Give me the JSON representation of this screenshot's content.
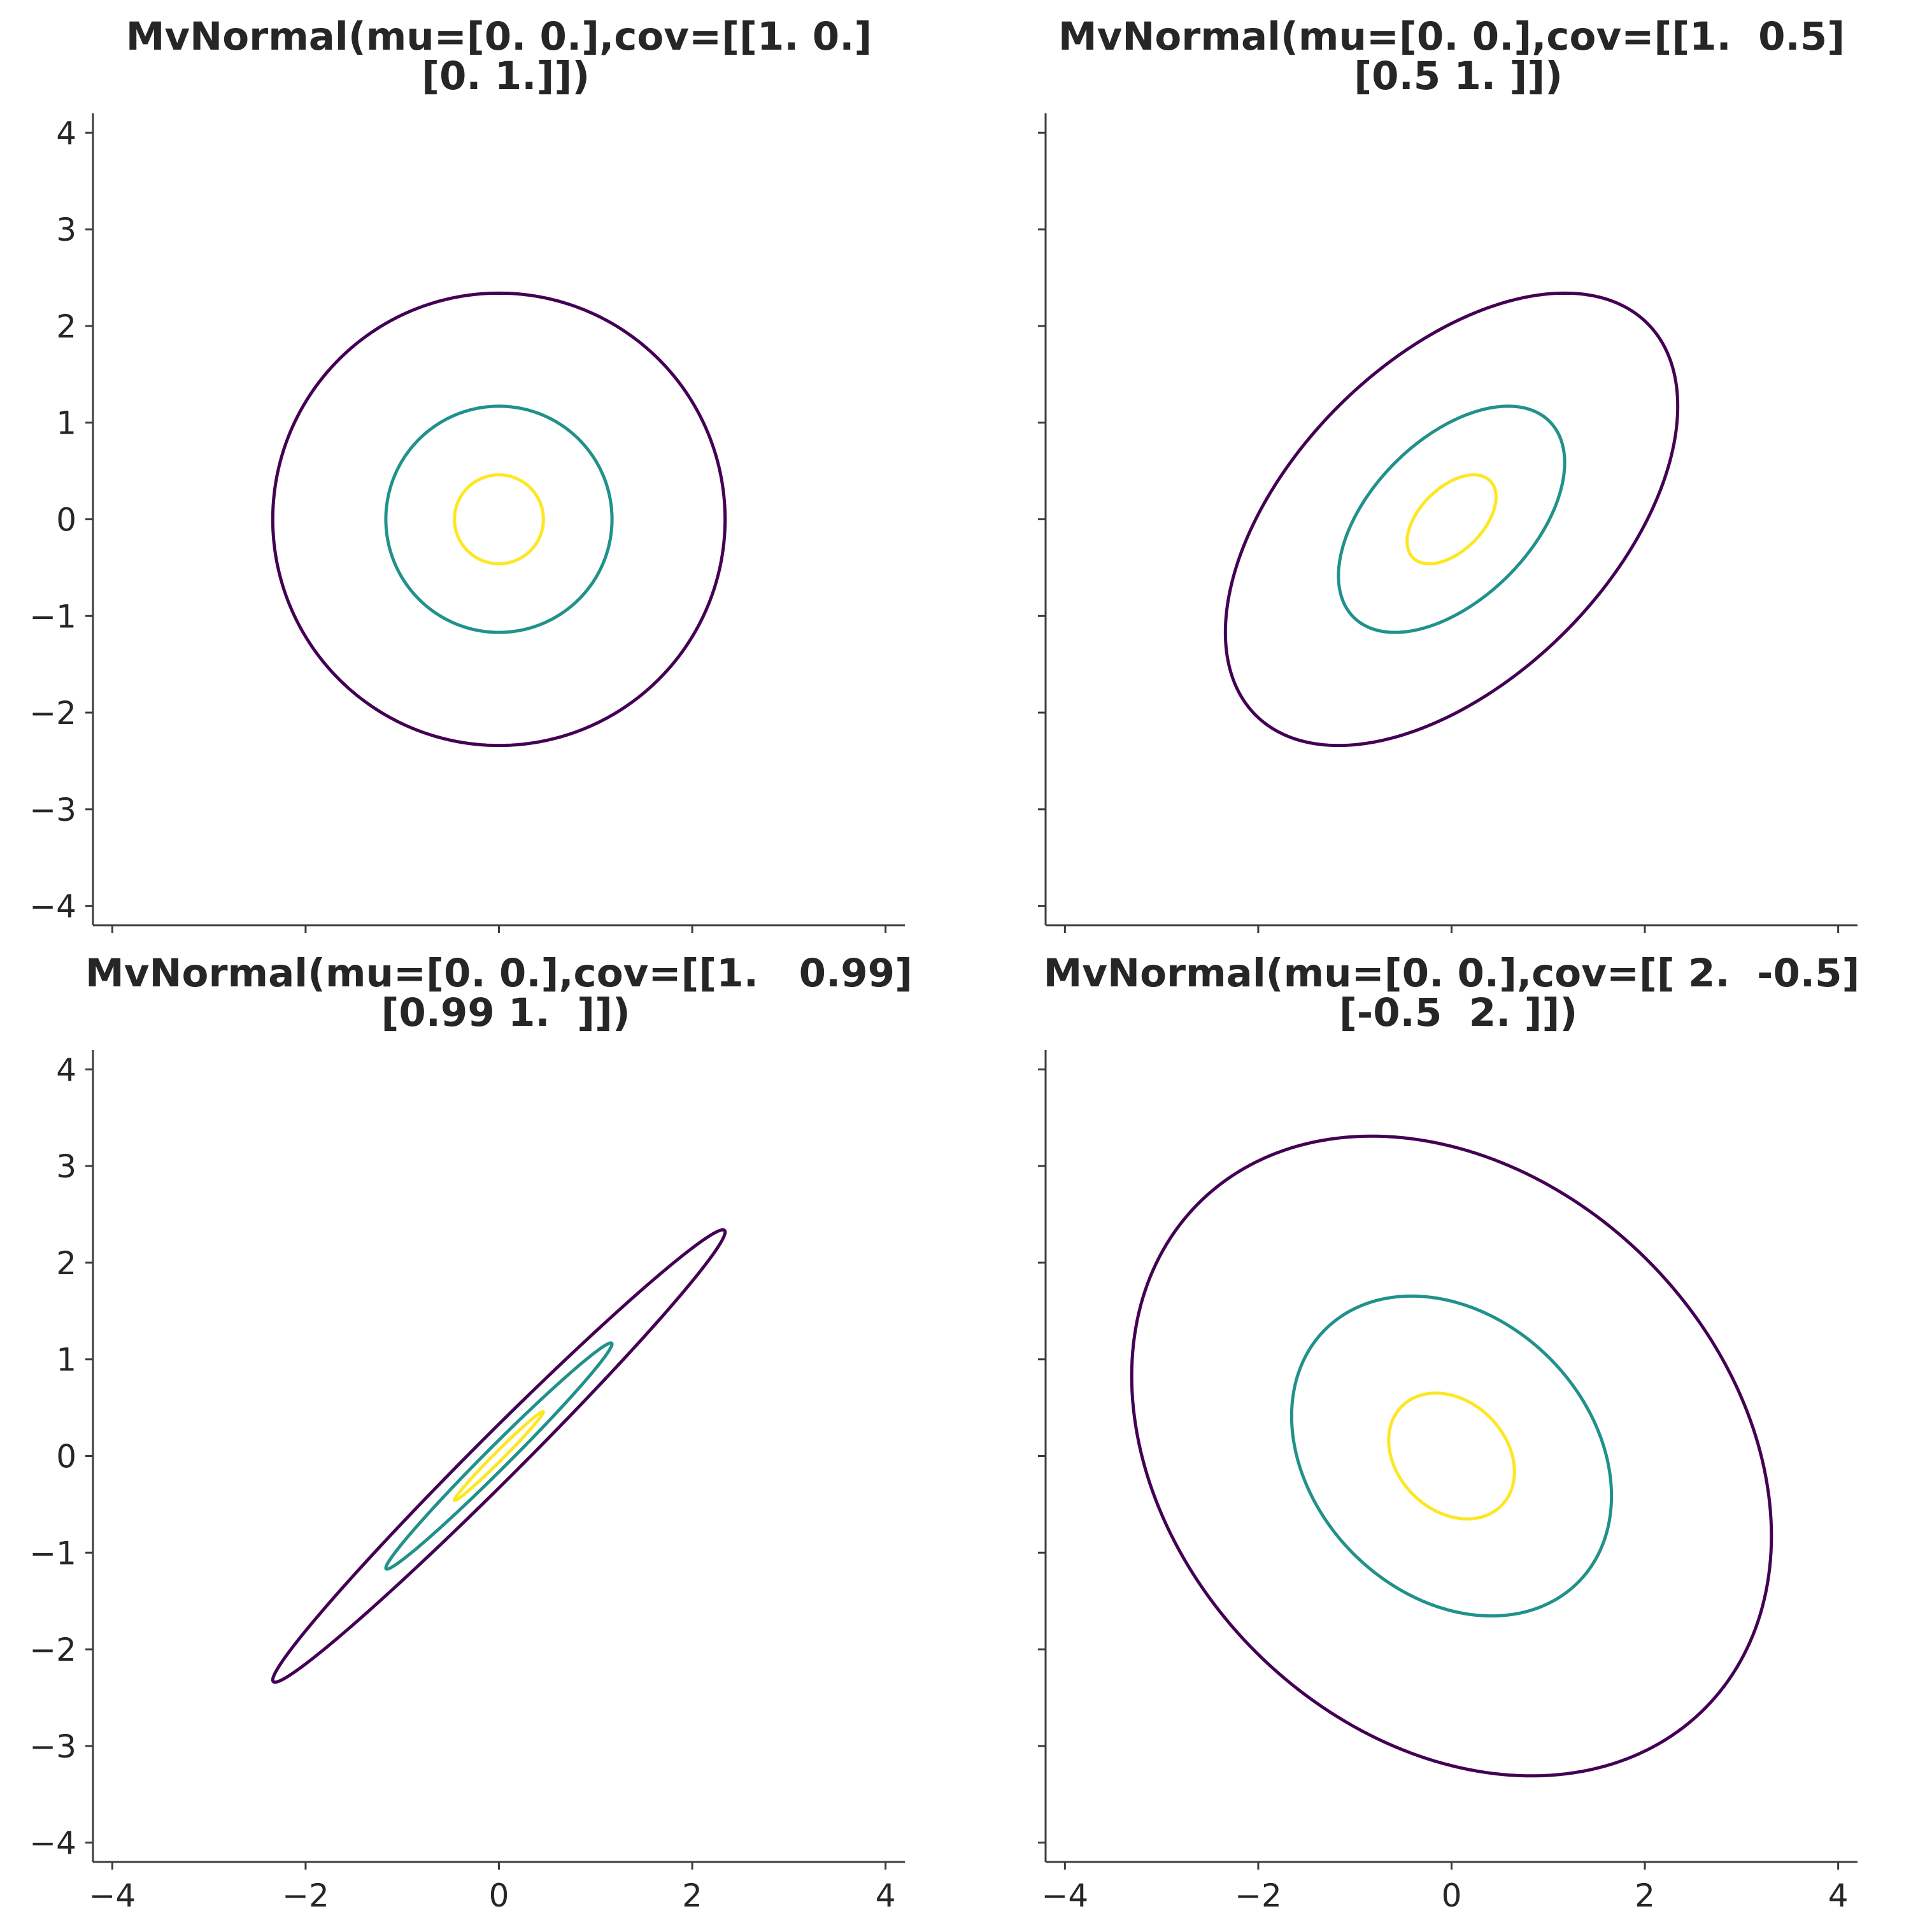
{
  "chart_data": [
    {
      "type": "contour",
      "title": "MvNormal(mu=[0. 0.],cov=[[1. 0.]\n [0. 1.]])",
      "mu": [
        0,
        0
      ],
      "cov": [
        [
          1.0,
          0.0
        ],
        [
          0.0,
          1.0
        ]
      ],
      "xlim": [
        -4.2,
        4.2
      ],
      "ylim": [
        -4.2,
        4.2
      ],
      "xticks": [
        -4,
        -2,
        0,
        2,
        4
      ],
      "yticks": [
        -4,
        -3,
        -2,
        -1,
        0,
        1,
        2,
        3,
        4
      ],
      "xtick_labels_visible": false,
      "ytick_labels_visible": true,
      "mahalanobis_levels": [
        0.46,
        1.17,
        2.34
      ],
      "level_colors": [
        "#fde725",
        "#21918c",
        "#440154"
      ]
    },
    {
      "type": "contour",
      "title": "MvNormal(mu=[0. 0.],cov=[[1.  0.5]\n [0.5 1. ]])",
      "mu": [
        0,
        0
      ],
      "cov": [
        [
          1.0,
          0.5
        ],
        [
          0.5,
          1.0
        ]
      ],
      "xlim": [
        -4.2,
        4.2
      ],
      "ylim": [
        -4.2,
        4.2
      ],
      "xticks": [
        -4,
        -2,
        0,
        2,
        4
      ],
      "yticks": [
        -4,
        -3,
        -2,
        -1,
        0,
        1,
        2,
        3,
        4
      ],
      "xtick_labels_visible": false,
      "ytick_labels_visible": false,
      "mahalanobis_levels": [
        0.46,
        1.17,
        2.34
      ],
      "level_colors": [
        "#fde725",
        "#21918c",
        "#440154"
      ]
    },
    {
      "type": "contour",
      "title": "MvNormal(mu=[0. 0.],cov=[[1.   0.99]\n [0.99 1.  ]])",
      "mu": [
        0,
        0
      ],
      "cov": [
        [
          1.0,
          0.99
        ],
        [
          0.99,
          1.0
        ]
      ],
      "xlim": [
        -4.2,
        4.2
      ],
      "ylim": [
        -4.2,
        4.2
      ],
      "xticks": [
        -4,
        -2,
        0,
        2,
        4
      ],
      "yticks": [
        -4,
        -3,
        -2,
        -1,
        0,
        1,
        2,
        3,
        4
      ],
      "xtick_labels_visible": true,
      "ytick_labels_visible": true,
      "mahalanobis_levels": [
        0.46,
        1.17,
        2.34
      ],
      "level_colors": [
        "#fde725",
        "#21918c",
        "#440154"
      ]
    },
    {
      "type": "contour",
      "title": "MvNormal(mu=[0. 0.],cov=[[ 2.  -0.5]\n [-0.5  2. ]])",
      "mu": [
        0,
        0
      ],
      "cov": [
        [
          2.0,
          -0.5
        ],
        [
          -0.5,
          2.0
        ]
      ],
      "xlim": [
        -4.2,
        4.2
      ],
      "ylim": [
        -4.2,
        4.2
      ],
      "xticks": [
        -4,
        -2,
        0,
        2,
        4
      ],
      "yticks": [
        -4,
        -3,
        -2,
        -1,
        0,
        1,
        2,
        3,
        4
      ],
      "xtick_labels_visible": true,
      "ytick_labels_visible": false,
      "mahalanobis_levels": [
        0.46,
        1.17,
        2.34
      ],
      "level_colors": [
        "#fde725",
        "#21918c",
        "#440154"
      ]
    }
  ]
}
